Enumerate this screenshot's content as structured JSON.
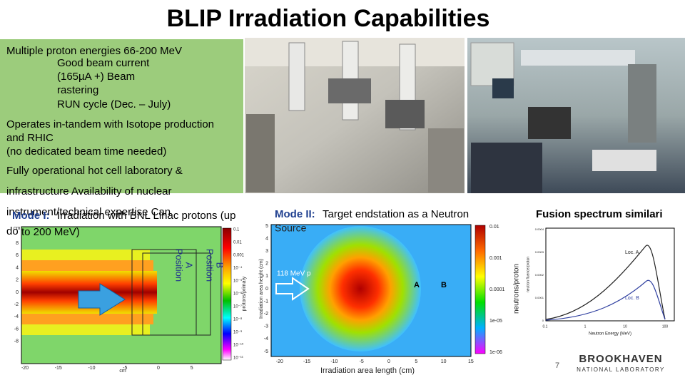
{
  "title": "BLIP Irradiation Capabilities",
  "capabilities": [
    "Multiple proton energies 66-200 MeV",
    "Good beam current",
    "(165µA +) Beam",
    "rastering",
    "RUN cycle (Dec. – July)",
    "Operates in-tandem with Isotope production",
    "and RHIC",
    "(no dedicated beam time needed)",
    "Fully operational hot cell laboratory &",
    "infrastructure Availability of nuclear",
    "instrument/technical expertise Can",
    "do"
  ],
  "mode1": {
    "label": "Mode I:",
    "text": [
      "Irradiation with BNL Linac protons (up",
      "to 200 MeV)"
    ],
    "position_a": [
      "Position",
      "A"
    ],
    "position_b": [
      "Position",
      "B"
    ],
    "xlabel": "cm",
    "ylabel": "cm",
    "colorbar_label": "protons/primary",
    "xticks": [
      -20,
      -15,
      -10,
      -5,
      0,
      5
    ],
    "yticks": [
      8,
      6,
      4,
      2,
      0,
      -2,
      -4,
      -6,
      -8
    ],
    "colorbar_ticks": [
      "0.1",
      "0.01",
      "0.001",
      "10⁻⁴",
      "10⁻⁵",
      "10⁻⁶",
      "10⁻⁷",
      "10⁻⁸",
      "10⁻⁹",
      "10⁻¹⁰",
      "10⁻¹¹"
    ]
  },
  "mode2": {
    "label": "Mode II:",
    "text": [
      "Target endstation as a Neutron",
      "Source"
    ],
    "beam_label": "118 MeV p",
    "loc_a": "A",
    "loc_b": "B",
    "xlabel": "Irradiation area length (cm)",
    "ylabel": "Irradiation area height (cm)",
    "colorbar_label": "neutrons/proton",
    "xticks": [
      -20,
      -15,
      -10,
      -5,
      0,
      5,
      10,
      15
    ],
    "yticks": [
      5,
      4,
      3,
      2,
      1,
      0,
      -1,
      -2,
      -3,
      -4,
      -5
    ],
    "colorbar_ticks": [
      "0.01",
      "0.001",
      "0.0001",
      "1e-05",
      "1e-06"
    ]
  },
  "fusion": {
    "title": "Fusion spectrum similari",
    "loc_a": "Loc. A",
    "loc_b": "Loc. B",
    "xlabel": "Neutron Energy (MeV)",
    "ylabel": "neutron fluence/proton",
    "xticks": [
      0.1,
      1,
      10,
      100
    ],
    "yticks": [
      "0.0004",
      "0.0003",
      "0.0002",
      "0.0001",
      "0"
    ]
  },
  "logo": {
    "name": "BROOKHAVEN",
    "subtitle": "NATIONAL LABORATORY"
  },
  "page_number": "7"
}
